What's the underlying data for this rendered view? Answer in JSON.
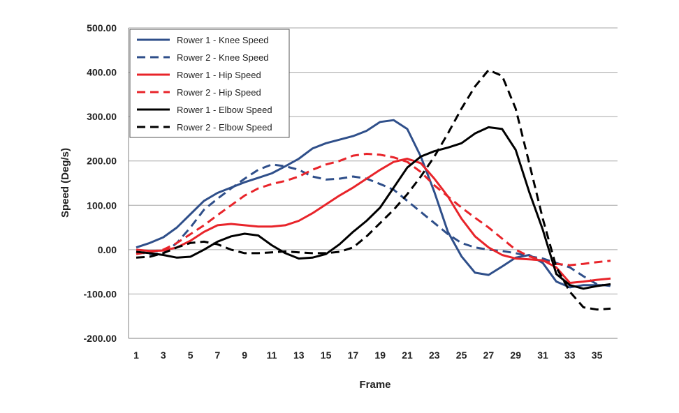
{
  "chart_data": {
    "type": "line",
    "xlabel": "Frame",
    "ylabel": "Speed (Deg/s)",
    "ylim": [
      -200,
      500
    ],
    "xlim": [
      1,
      36
    ],
    "y_ticks": [
      -200,
      -100,
      0,
      100,
      200,
      300,
      400,
      500
    ],
    "y_tick_labels": [
      "-200.00",
      "-100.00",
      "0.00",
      "100.00",
      "200.00",
      "300.00",
      "400.00",
      "500.00"
    ],
    "x_tick_labels": [
      "1",
      "3",
      "5",
      "7",
      "9",
      "11",
      "13",
      "15",
      "17",
      "19",
      "21",
      "23",
      "25",
      "27",
      "29",
      "31",
      "33",
      "35"
    ],
    "grid": "horizontal",
    "legend_position": "top-left",
    "x": [
      1,
      2,
      3,
      4,
      5,
      6,
      7,
      8,
      9,
      10,
      11,
      12,
      13,
      14,
      15,
      16,
      17,
      18,
      19,
      20,
      21,
      22,
      23,
      24,
      25,
      26,
      27,
      28,
      29,
      30,
      31,
      32,
      33,
      34,
      35,
      36
    ],
    "series": [
      {
        "name": "Rower 1 - Knee Speed",
        "color": "#2f4f8a",
        "dash": "solid",
        "values": [
          5,
          15,
          28,
          50,
          80,
          110,
          128,
          140,
          152,
          162,
          172,
          188,
          205,
          228,
          240,
          248,
          256,
          268,
          288,
          292,
          272,
          210,
          130,
          40,
          -15,
          -52,
          -57,
          -38,
          -18,
          -12,
          -30,
          -72,
          -85,
          -80,
          -80,
          -80
        ]
      },
      {
        "name": "Rower 2 - Knee Speed",
        "color": "#2f4f8a",
        "dash": "dashed",
        "values": [
          -5,
          -10,
          -8,
          15,
          50,
          90,
          115,
          138,
          160,
          180,
          192,
          188,
          180,
          165,
          158,
          160,
          165,
          160,
          148,
          135,
          110,
          85,
          60,
          35,
          15,
          5,
          0,
          -3,
          -8,
          -15,
          -20,
          -30,
          -40,
          -60,
          -78,
          -82
        ]
      },
      {
        "name": "Rower 1 - Hip Speed",
        "color": "#e8242a",
        "dash": "solid",
        "values": [
          0,
          -3,
          -2,
          5,
          20,
          40,
          55,
          58,
          55,
          52,
          52,
          55,
          65,
          82,
          102,
          122,
          140,
          160,
          180,
          198,
          205,
          195,
          160,
          120,
          70,
          30,
          5,
          -12,
          -20,
          -22,
          -24,
          -40,
          -75,
          -72,
          -68,
          -65
        ]
      },
      {
        "name": "Rower 2 - Hip Speed",
        "color": "#e8242a",
        "dash": "dashed",
        "values": [
          -10,
          -5,
          0,
          15,
          35,
          55,
          78,
          100,
          122,
          138,
          148,
          155,
          165,
          180,
          192,
          200,
          212,
          216,
          214,
          208,
          198,
          175,
          145,
          120,
          95,
          72,
          50,
          25,
          0,
          -15,
          -25,
          -32,
          -35,
          -32,
          -28,
          -25
        ]
      },
      {
        "name": "Rower 1 - Elbow Speed",
        "color": "#000000",
        "dash": "solid",
        "values": [
          -5,
          -8,
          -12,
          -18,
          -16,
          0,
          18,
          30,
          36,
          32,
          10,
          -8,
          -20,
          -18,
          -10,
          12,
          40,
          65,
          95,
          140,
          185,
          210,
          222,
          230,
          240,
          262,
          276,
          272,
          225,
          130,
          45,
          -55,
          -80,
          -88,
          -82,
          -78
        ]
      },
      {
        "name": "Rower 2 - Elbow Speed",
        "color": "#000000",
        "dash": "dashed",
        "values": [
          -18,
          -16,
          -8,
          5,
          15,
          18,
          12,
          0,
          -8,
          -8,
          -6,
          -4,
          -6,
          -8,
          -8,
          -5,
          5,
          30,
          60,
          90,
          125,
          165,
          210,
          262,
          318,
          368,
          405,
          392,
          318,
          195,
          70,
          -40,
          -95,
          -130,
          -135,
          -133
        ]
      }
    ]
  }
}
